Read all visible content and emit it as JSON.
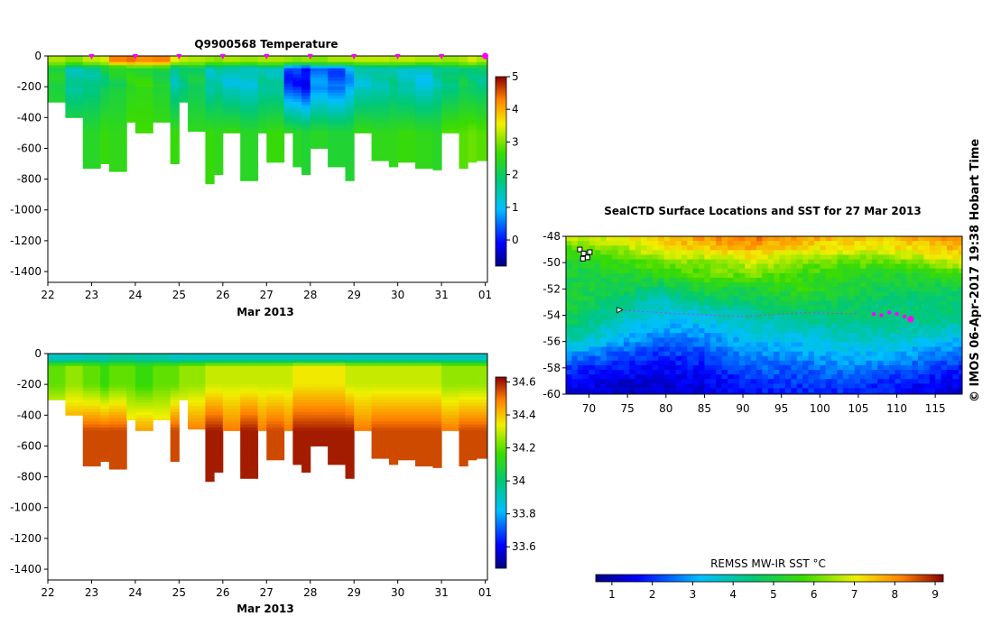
{
  "chart_data": [
    {
      "type": "heatmap",
      "title": "Q9900568  Temperature",
      "xlabel": "Mar 2013",
      "ylabel": "",
      "x_tick_labels": [
        "22",
        "23",
        "24",
        "25",
        "26",
        "27",
        "28",
        "29",
        "30",
        "31",
        "01"
      ],
      "x_range": [
        22,
        32.05
      ],
      "y_tick_labels": [
        "0",
        "-200",
        "-400",
        "-600",
        "-800",
        "-1000",
        "-1200",
        "-1400"
      ],
      "y_ticks": [
        0,
        -200,
        -400,
        -600,
        -800,
        -1000,
        -1200,
        -1400
      ],
      "ylim": [
        -1470,
        0
      ],
      "colorbar": {
        "ticks": [
          "5",
          "4",
          "3",
          "2",
          "1",
          "0"
        ],
        "range": [
          -0.8,
          5.0
        ]
      },
      "surface_markers_x": [
        23,
        24,
        25,
        26,
        27,
        28,
        29,
        30,
        31,
        32
      ],
      "profiles": [
        {
          "x": 22.0,
          "depth": -300,
          "surface": 3.2,
          "top": 2.2,
          "deep": 2.6
        },
        {
          "x": 22.4,
          "depth": -400,
          "surface": 3.0,
          "top": 1.5,
          "deep": 2.5
        },
        {
          "x": 22.8,
          "depth": -730,
          "surface": 3.3,
          "top": 1.7,
          "deep": 2.4
        },
        {
          "x": 23.2,
          "depth": -700,
          "surface": 3.4,
          "top": 2.0,
          "deep": 2.6
        },
        {
          "x": 23.4,
          "depth": -750,
          "surface": 4.3,
          "top": 2.2,
          "deep": 2.5
        },
        {
          "x": 23.8,
          "depth": -430,
          "surface": 4.4,
          "top": 2.4,
          "deep": 2.8
        },
        {
          "x": 24.0,
          "depth": -500,
          "surface": 4.2,
          "top": 2.5,
          "deep": 2.7
        },
        {
          "x": 24.4,
          "depth": -430,
          "surface": 4.3,
          "top": 2.3,
          "deep": 2.6
        },
        {
          "x": 24.8,
          "depth": -700,
          "surface": 3.5,
          "top": 1.5,
          "deep": 2.6
        },
        {
          "x": 25.0,
          "depth": -300,
          "surface": 3.3,
          "top": 1.8,
          "deep": 2.4
        },
        {
          "x": 25.2,
          "depth": -490,
          "surface": 3.2,
          "top": 2.0,
          "deep": 2.5
        },
        {
          "x": 25.6,
          "depth": -830,
          "surface": 3.1,
          "top": 1.4,
          "deep": 2.6
        },
        {
          "x": 25.8,
          "depth": -770,
          "surface": 3.0,
          "top": 1.6,
          "deep": 2.5
        },
        {
          "x": 26.0,
          "depth": -500,
          "surface": 3.2,
          "top": 1.3,
          "deep": 2.6
        },
        {
          "x": 26.4,
          "depth": -810,
          "surface": 3.1,
          "top": 1.2,
          "deep": 2.4
        },
        {
          "x": 26.8,
          "depth": -500,
          "surface": 3.2,
          "top": 1.5,
          "deep": 2.5
        },
        {
          "x": 27.0,
          "depth": -690,
          "surface": 3.2,
          "top": 1.5,
          "deep": 2.6
        },
        {
          "x": 27.4,
          "depth": -500,
          "surface": 3.1,
          "top": 0.2,
          "deep": 2.5
        },
        {
          "x": 27.6,
          "depth": -720,
          "surface": 3.0,
          "top": 0.1,
          "deep": 2.4
        },
        {
          "x": 27.8,
          "depth": -770,
          "surface": 3.1,
          "top": -0.2,
          "deep": 2.3
        },
        {
          "x": 28.0,
          "depth": -600,
          "surface": 3.0,
          "top": 0.6,
          "deep": 2.4
        },
        {
          "x": 28.4,
          "depth": -720,
          "surface": 3.2,
          "top": 0.4,
          "deep": 2.3
        },
        {
          "x": 28.8,
          "depth": -810,
          "surface": 3.2,
          "top": 0.8,
          "deep": 2.3
        },
        {
          "x": 29.0,
          "depth": -500,
          "surface": 3.3,
          "top": 1.3,
          "deep": 2.6
        },
        {
          "x": 29.4,
          "depth": -680,
          "surface": 3.3,
          "top": 1.4,
          "deep": 2.5
        },
        {
          "x": 29.8,
          "depth": -720,
          "surface": 3.2,
          "top": 1.6,
          "deep": 2.5
        },
        {
          "x": 30.0,
          "depth": -690,
          "surface": 3.3,
          "top": 1.4,
          "deep": 2.6
        },
        {
          "x": 30.4,
          "depth": -730,
          "surface": 3.2,
          "top": 1.2,
          "deep": 2.5
        },
        {
          "x": 30.8,
          "depth": -740,
          "surface": 3.2,
          "top": 1.5,
          "deep": 2.4
        },
        {
          "x": 31.0,
          "depth": -500,
          "surface": 3.1,
          "top": 1.7,
          "deep": 2.8
        },
        {
          "x": 31.4,
          "depth": -730,
          "surface": 3.2,
          "top": 2.0,
          "deep": 2.8
        },
        {
          "x": 31.6,
          "depth": -690,
          "surface": 3.4,
          "top": 1.9,
          "deep": 2.9
        },
        {
          "x": 31.8,
          "depth": -680,
          "surface": 3.2,
          "top": 1.8,
          "deep": 2.8
        }
      ]
    },
    {
      "type": "heatmap",
      "title": "",
      "xlabel": "Mar 2013",
      "ylabel": "",
      "x_tick_labels": [
        "22",
        "23",
        "24",
        "25",
        "26",
        "27",
        "28",
        "29",
        "30",
        "31",
        "01"
      ],
      "x_range": [
        22,
        32.05
      ],
      "y_tick_labels": [
        "0",
        "-200",
        "-400",
        "-600",
        "-800",
        "-1000",
        "-1200",
        "-1400"
      ],
      "y_ticks": [
        0,
        -200,
        -400,
        -600,
        -800,
        -1000,
        -1200,
        -1400
      ],
      "ylim": [
        -1470,
        0
      ],
      "colorbar": {
        "ticks": [
          "34.6",
          "34.4",
          "34.2",
          "34",
          "33.8",
          "33.6"
        ],
        "range": [
          33.47,
          34.63
        ]
      },
      "profiles": [
        {
          "x": 22.0,
          "depth": -300,
          "surface": 33.9,
          "top": 34.2,
          "deep": 34.45
        },
        {
          "x": 22.4,
          "depth": -400,
          "surface": 33.9,
          "top": 34.25,
          "deep": 34.5
        },
        {
          "x": 22.8,
          "depth": -730,
          "surface": 33.92,
          "top": 34.2,
          "deep": 34.55
        },
        {
          "x": 23.2,
          "depth": -700,
          "surface": 33.92,
          "top": 34.15,
          "deep": 34.55
        },
        {
          "x": 23.4,
          "depth": -750,
          "surface": 33.95,
          "top": 34.2,
          "deep": 34.55
        },
        {
          "x": 23.8,
          "depth": -430,
          "surface": 33.95,
          "top": 34.2,
          "deep": 34.4
        },
        {
          "x": 24.0,
          "depth": -500,
          "surface": 33.93,
          "top": 34.15,
          "deep": 34.45
        },
        {
          "x": 24.4,
          "depth": -430,
          "surface": 33.93,
          "top": 34.2,
          "deep": 34.4
        },
        {
          "x": 24.8,
          "depth": -700,
          "surface": 33.9,
          "top": 34.2,
          "deep": 34.55
        },
        {
          "x": 25.0,
          "depth": -300,
          "surface": 33.9,
          "top": 34.25,
          "deep": 34.45
        },
        {
          "x": 25.2,
          "depth": -490,
          "surface": 33.9,
          "top": 34.25,
          "deep": 34.5
        },
        {
          "x": 25.6,
          "depth": -830,
          "surface": 33.9,
          "top": 34.3,
          "deep": 34.6
        },
        {
          "x": 25.8,
          "depth": -770,
          "surface": 33.9,
          "top": 34.3,
          "deep": 34.6
        },
        {
          "x": 26.0,
          "depth": -500,
          "surface": 33.9,
          "top": 34.3,
          "deep": 34.5
        },
        {
          "x": 26.4,
          "depth": -810,
          "surface": 33.9,
          "top": 34.3,
          "deep": 34.6
        },
        {
          "x": 26.8,
          "depth": -500,
          "surface": 33.9,
          "top": 34.3,
          "deep": 34.5
        },
        {
          "x": 27.0,
          "depth": -690,
          "surface": 33.9,
          "top": 34.3,
          "deep": 34.55
        },
        {
          "x": 27.4,
          "depth": -500,
          "surface": 33.9,
          "top": 34.3,
          "deep": 34.5
        },
        {
          "x": 27.6,
          "depth": -720,
          "surface": 33.9,
          "top": 34.35,
          "deep": 34.6
        },
        {
          "x": 27.8,
          "depth": -770,
          "surface": 33.9,
          "top": 34.35,
          "deep": 34.6
        },
        {
          "x": 28.0,
          "depth": -600,
          "surface": 33.9,
          "top": 34.35,
          "deep": 34.6
        },
        {
          "x": 28.4,
          "depth": -720,
          "surface": 33.9,
          "top": 34.35,
          "deep": 34.6
        },
        {
          "x": 28.8,
          "depth": -810,
          "surface": 33.9,
          "top": 34.3,
          "deep": 34.6
        },
        {
          "x": 29.0,
          "depth": -500,
          "surface": 33.9,
          "top": 34.3,
          "deep": 34.5
        },
        {
          "x": 29.4,
          "depth": -680,
          "surface": 33.9,
          "top": 34.3,
          "deep": 34.55
        },
        {
          "x": 29.8,
          "depth": -720,
          "surface": 33.9,
          "top": 34.3,
          "deep": 34.55
        },
        {
          "x": 30.0,
          "depth": -690,
          "surface": 33.9,
          "top": 34.3,
          "deep": 34.55
        },
        {
          "x": 30.4,
          "depth": -730,
          "surface": 33.9,
          "top": 34.3,
          "deep": 34.55
        },
        {
          "x": 30.8,
          "depth": -740,
          "surface": 33.9,
          "top": 34.3,
          "deep": 34.55
        },
        {
          "x": 31.0,
          "depth": -500,
          "surface": 33.9,
          "top": 34.25,
          "deep": 34.5
        },
        {
          "x": 31.4,
          "depth": -730,
          "surface": 33.9,
          "top": 34.25,
          "deep": 34.55
        },
        {
          "x": 31.6,
          "depth": -690,
          "surface": 33.9,
          "top": 34.25,
          "deep": 34.55
        },
        {
          "x": 31.8,
          "depth": -680,
          "surface": 33.9,
          "top": 34.25,
          "deep": 34.55
        }
      ]
    },
    {
      "type": "heatmap",
      "title": "SealCTD Surface Locations and SST for 27 Mar 2013",
      "xlabel": "",
      "ylabel": "",
      "x_tick_labels": [
        "70",
        "75",
        "80",
        "85",
        "90",
        "95",
        "100",
        "105",
        "110",
        "115"
      ],
      "x_ticks": [
        70,
        75,
        80,
        85,
        90,
        95,
        100,
        105,
        110,
        115
      ],
      "xlim": [
        67,
        118.5
      ],
      "y_tick_labels": [
        "-48",
        "-50",
        "-52",
        "-54",
        "-56",
        "-58",
        "-60"
      ],
      "y_ticks": [
        -48,
        -50,
        -52,
        -54,
        -56,
        -58,
        -60
      ],
      "ylim": [
        -60,
        -48
      ],
      "colorbar": {
        "label": "REMSS MW-IR SST °C",
        "ticks": [
          "1",
          "2",
          "3",
          "4",
          "5",
          "6",
          "7",
          "8",
          "9"
        ],
        "range": [
          0.6,
          9.2
        ]
      },
      "sst_field": {
        "lon_nodes": [
          67,
          73,
          79,
          85,
          91,
          97,
          103,
          109,
          118.5
        ],
        "lat_nodes": [
          -48,
          -49,
          -50,
          -51,
          -52,
          -53,
          -54,
          -55,
          -56,
          -57,
          -58,
          -59,
          -60
        ],
        "values": [
          [
            7.0,
            7.0,
            7.5,
            8.0,
            8.3,
            8.0,
            7.6,
            7.6,
            8.2
          ],
          [
            5.8,
            6.2,
            7.2,
            7.3,
            7.6,
            7.2,
            7.0,
            7.0,
            7.6
          ],
          [
            5.2,
            5.5,
            6.1,
            6.3,
            6.8,
            6.3,
            6.0,
            6.0,
            6.8
          ],
          [
            5.0,
            5.1,
            5.4,
            5.9,
            6.1,
            5.6,
            5.5,
            5.2,
            5.6
          ],
          [
            5.1,
            5.0,
            4.5,
            5.2,
            5.0,
            5.6,
            5.2,
            4.8,
            4.8
          ],
          [
            5.2,
            4.6,
            3.8,
            4.3,
            4.6,
            5.0,
            4.8,
            4.4,
            4.6
          ],
          [
            4.9,
            4.2,
            3.4,
            3.6,
            4.1,
            4.3,
            4.6,
            4.6,
            4.4
          ],
          [
            4.6,
            3.7,
            3.0,
            3.1,
            3.6,
            3.8,
            4.0,
            4.2,
            3.8
          ],
          [
            4.0,
            3.1,
            2.5,
            2.6,
            3.2,
            3.3,
            3.6,
            3.7,
            3.0
          ],
          [
            2.9,
            2.4,
            2.0,
            2.2,
            2.8,
            2.8,
            3.2,
            3.1,
            2.5
          ],
          [
            2.1,
            1.8,
            1.6,
            1.7,
            2.4,
            2.4,
            2.7,
            2.5,
            1.9
          ],
          [
            1.6,
            1.4,
            1.3,
            1.5,
            2.0,
            2.1,
            2.2,
            2.0,
            1.5
          ],
          [
            1.4,
            1.2,
            1.2,
            1.3,
            1.8,
            1.8,
            1.9,
            1.7,
            1.3
          ]
        ]
      },
      "track_points": [
        {
          "lon": 107.0,
          "lat": -53.9
        },
        {
          "lon": 108.0,
          "lat": -54.0
        },
        {
          "lon": 109.0,
          "lat": -53.8
        },
        {
          "lon": 110.0,
          "lat": -53.9
        },
        {
          "lon": 111.0,
          "lat": -54.1
        },
        {
          "lon": 111.8,
          "lat": -54.3
        }
      ],
      "track_color": "#ff00ff",
      "dotted_line": [
        {
          "lon": 74,
          "lat": -53.6
        },
        {
          "lon": 82,
          "lat": -53.9
        },
        {
          "lon": 90,
          "lat": -54.1
        },
        {
          "lon": 98,
          "lat": -53.8
        },
        {
          "lon": 105,
          "lat": -53.9
        }
      ],
      "land_markers": [
        {
          "lon": 68.8,
          "lat": -49.0
        },
        {
          "lon": 69.3,
          "lat": -49.3
        },
        {
          "lon": 69.8,
          "lat": -49.6
        },
        {
          "lon": 69.2,
          "lat": -49.7
        },
        {
          "lon": 70.1,
          "lat": -49.2
        }
      ]
    }
  ],
  "credit": "© IMOS 06-Apr-2017 19:38 Hobart Time",
  "colors": {
    "marker_magenta": "#ff00ff"
  }
}
